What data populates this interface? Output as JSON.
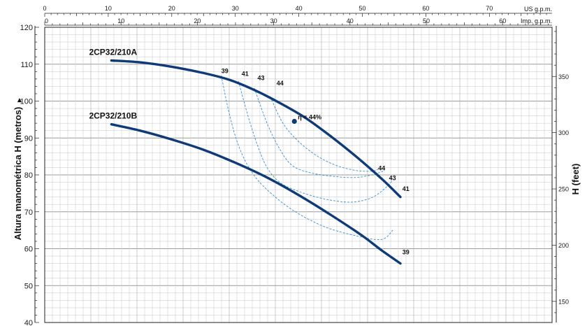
{
  "chart_data": {
    "type": "line",
    "ylabel_left": "Altura manométrica H (metros)",
    "ylabel_right": "H (feet)",
    "x_units": {
      "us": "US g.p.m.",
      "imp": "Imp. g.p.m."
    },
    "us_gpm_ticks": [
      "0",
      "10",
      "20",
      "30",
      "40",
      "50",
      "60",
      "70"
    ],
    "imp_gpm_ticks": [
      "0",
      "10",
      "20",
      "30",
      "40",
      "50",
      "60"
    ],
    "ylim": [
      40,
      120
    ],
    "y_ticks": [
      "40",
      "50",
      "60",
      "70",
      "80",
      "90",
      "100",
      "110",
      "120"
    ],
    "feet_ticks": [
      "150",
      "200",
      "250",
      "300",
      "350"
    ],
    "grid": true,
    "series": [
      {
        "name": "2CP32/210A",
        "points": [
          [
            10.5,
            111
          ],
          [
            15,
            110.5
          ],
          [
            20,
            109.3
          ],
          [
            25,
            107.6
          ],
          [
            29,
            105.8
          ],
          [
            33,
            103
          ],
          [
            37,
            99.5
          ],
          [
            41,
            95.5
          ],
          [
            45,
            90.5
          ],
          [
            49,
            85
          ],
          [
            53,
            79
          ],
          [
            56,
            74
          ]
        ]
      },
      {
        "name": "2CP32/210B",
        "points": [
          [
            10.5,
            93.7
          ],
          [
            15,
            92
          ],
          [
            20,
            89.6
          ],
          [
            25,
            86.8
          ],
          [
            30,
            83.3
          ],
          [
            35,
            79.3
          ],
          [
            40,
            74.5
          ],
          [
            45,
            69.2
          ],
          [
            50,
            63.5
          ],
          [
            53,
            59.6
          ],
          [
            56,
            56
          ]
        ]
      }
    ],
    "efficiency_marker": {
      "label": "η = 44%",
      "x": 39.3,
      "y": 94.5
    },
    "efficiency_labels": [
      {
        "text": "39",
        "x": 27.8,
        "y": 107.6
      },
      {
        "text": "41",
        "x": 31,
        "y": 106.8
      },
      {
        "text": "43",
        "x": 33.5,
        "y": 105.7
      },
      {
        "text": "44",
        "x": 36.5,
        "y": 104.3
      },
      {
        "text": "44",
        "x": 52.5,
        "y": 81.2
      },
      {
        "text": "43",
        "x": 54.2,
        "y": 78.6
      },
      {
        "text": "41",
        "x": 56.3,
        "y": 75.6
      },
      {
        "text": "39",
        "x": 56.3,
        "y": 58.5
      }
    ],
    "efficiency_contours": [
      {
        "name": "39",
        "points": [
          [
            27.8,
            106.9
          ],
          [
            29,
            97
          ],
          [
            30.5,
            88
          ],
          [
            32.5,
            81
          ],
          [
            35,
            76
          ],
          [
            39,
            70.5
          ],
          [
            44,
            66
          ],
          [
            49,
            63.5
          ],
          [
            53,
            62.5
          ],
          [
            54.8,
            65
          ]
        ]
      },
      {
        "name": "41",
        "points": [
          [
            30.5,
            105.4
          ],
          [
            32,
            96
          ],
          [
            33.5,
            88
          ],
          [
            35,
            82
          ],
          [
            37,
            78
          ],
          [
            40,
            75.5
          ],
          [
            44,
            73.5
          ],
          [
            48,
            72.6
          ],
          [
            51,
            73.5
          ],
          [
            53,
            75.5
          ],
          [
            54.8,
            78.5
          ]
        ]
      },
      {
        "name": "43",
        "points": [
          [
            33,
            103.5
          ],
          [
            35,
            94
          ],
          [
            37,
            87
          ],
          [
            39,
            82.5
          ],
          [
            42,
            80.5
          ],
          [
            46,
            79.5
          ],
          [
            49,
            79.3
          ],
          [
            51.5,
            80
          ],
          [
            53.3,
            81
          ]
        ]
      },
      {
        "name": "44",
        "points": [
          [
            35.5,
            101.2
          ],
          [
            37.5,
            94
          ],
          [
            40,
            89
          ],
          [
            43,
            85
          ],
          [
            46,
            82.5
          ],
          [
            49,
            81.2
          ],
          [
            51.5,
            81
          ],
          [
            52.5,
            81.6
          ]
        ]
      }
    ]
  }
}
